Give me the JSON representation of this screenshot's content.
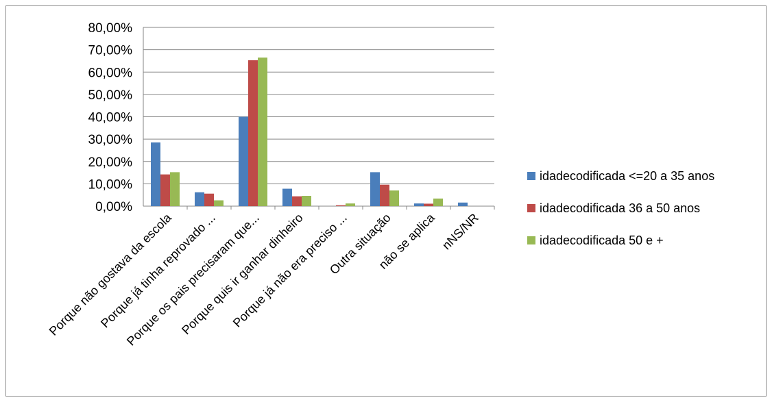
{
  "chart_data": {
    "type": "bar",
    "categories": [
      "Porque não gostava da escola",
      "Porque já tinha reprovado ...",
      "Porque os pais precisaram que...",
      "Porque quis ir ganhar dinheiro",
      "Porque já não era preciso ...",
      "Outra situação",
      "não se aplica",
      "nNS/NR"
    ],
    "series": [
      {
        "name": "idadecodificada <=20 a 35 anos",
        "color": "#4a7ebb",
        "values": [
          28.5,
          6.2,
          40.0,
          7.8,
          0.0,
          15.2,
          1.2,
          1.6
        ]
      },
      {
        "name": "idadecodificada 36 a 50 anos",
        "color": "#be4b48",
        "values": [
          14.2,
          5.6,
          65.3,
          4.4,
          0.4,
          9.6,
          1.1,
          0.0
        ]
      },
      {
        "name": "idadecodificada 50 e +",
        "color": "#98b954",
        "values": [
          15.2,
          2.6,
          66.5,
          4.6,
          1.2,
          7.0,
          3.4,
          0.0
        ]
      }
    ],
    "y_ticks": [
      "0,00%",
      "10,00%",
      "20,00%",
      "30,00%",
      "40,00%",
      "50,00%",
      "60,00%",
      "70,00%",
      "80,00%"
    ],
    "ylim": [
      0,
      80
    ],
    "grid": true,
    "legend_position": "right",
    "title": "",
    "xlabel": "",
    "ylabel": ""
  }
}
